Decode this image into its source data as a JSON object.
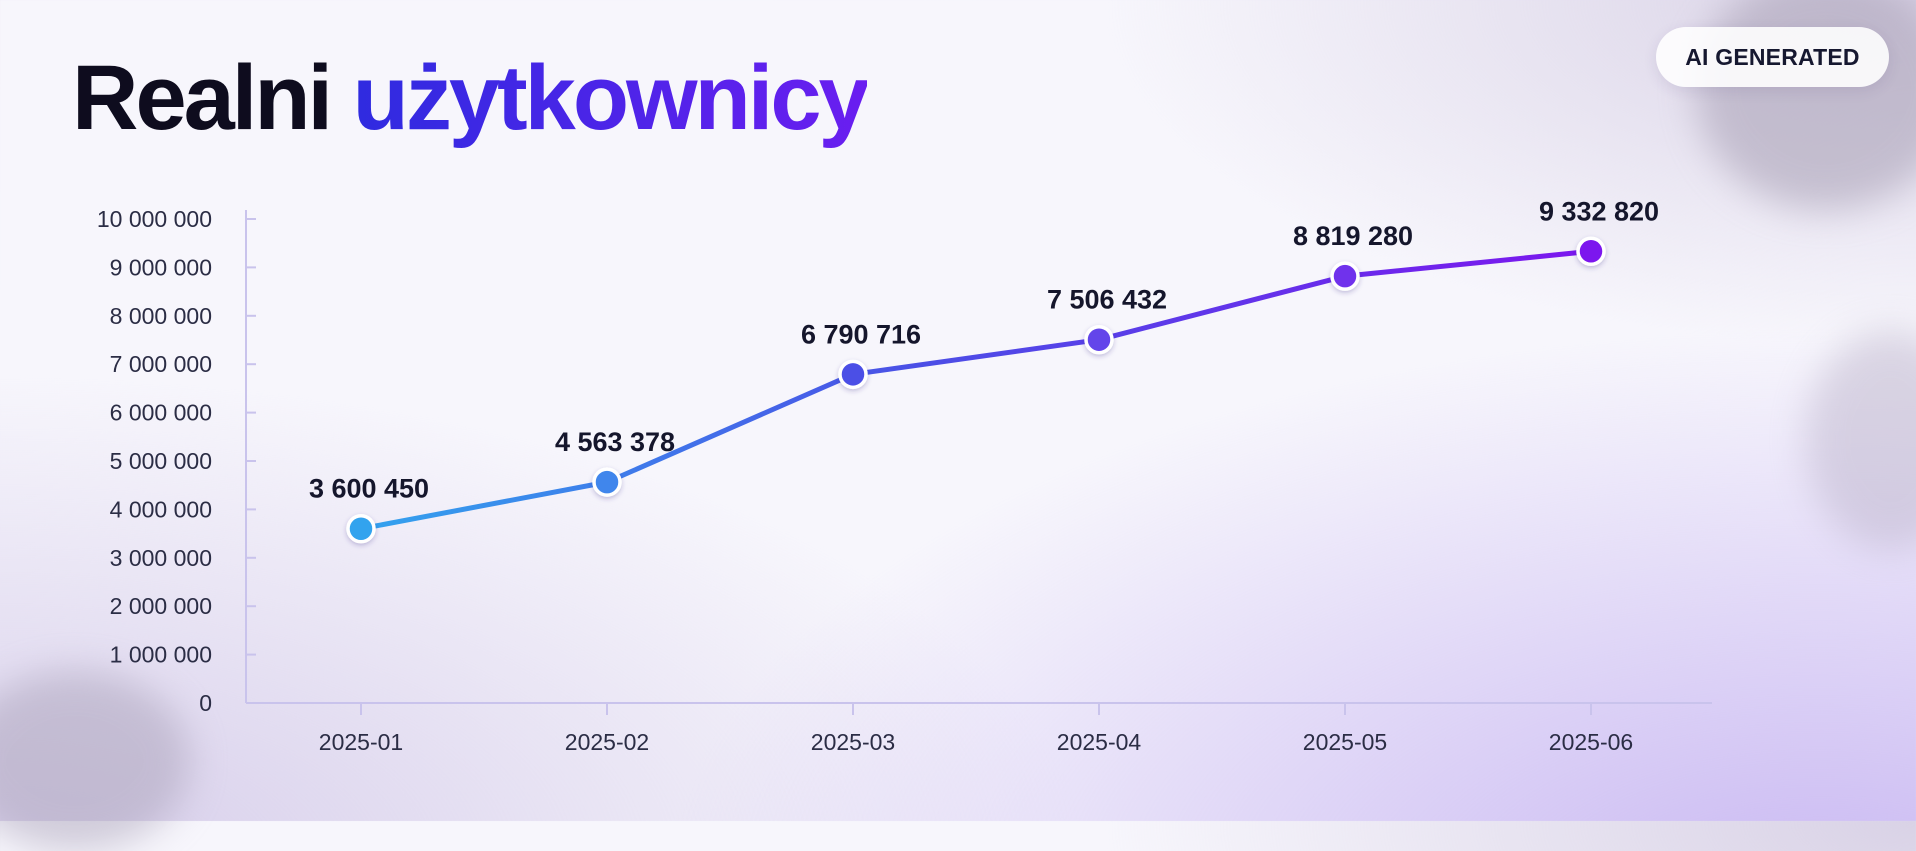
{
  "title": {
    "part1": "Realni",
    "part2": "użytkownicy"
  },
  "badge": {
    "label": "AI GENERATED"
  },
  "chart_data": {
    "type": "line",
    "title": "Realni użytkownicy",
    "xlabel": "",
    "ylabel": "",
    "categories": [
      "2025-01",
      "2025-02",
      "2025-03",
      "2025-04",
      "2025-05",
      "2025-06"
    ],
    "series": [
      {
        "values": [
          3600450,
          4563378,
          6790716,
          7506432,
          8819280,
          9332820
        ]
      }
    ],
    "data_labels": [
      "3 600 450",
      "4 563 378",
      "6 790 716",
      "7 506 432",
      "8 819 280",
      "9 332 820"
    ],
    "ylim": [
      0,
      10000000
    ],
    "yticks": [
      0,
      1000000,
      2000000,
      3000000,
      4000000,
      5000000,
      6000000,
      7000000,
      8000000,
      9000000,
      10000000
    ],
    "ytick_labels": [
      "0",
      "1 000 000",
      "2 000 000",
      "3 000 000",
      "4 000 000",
      "5 000 000",
      "6 000 000",
      "7 000 000",
      "8 000 000",
      "9 000 000",
      "10 000 000"
    ],
    "grid": false,
    "legend": "none",
    "colors": {
      "start": "#33a3ee",
      "mid": "#4b4fe6",
      "end": "#7c16ee",
      "axis": "#c9c3ec"
    }
  }
}
